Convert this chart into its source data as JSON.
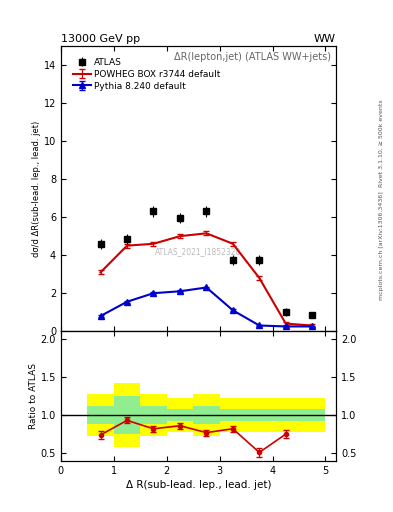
{
  "title_left": "13000 GeV pp",
  "title_right": "WW",
  "plot_title": "ΔR(lepton,jet) (ATLAS WW+jets)",
  "xlabel": "Δ R(sub-lead. lep., lead. jet)",
  "ylabel_main": "dσ/d ΔR(sub-lead. lep., lead. jet)",
  "ylabel_ratio": "Ratio to ATLAS",
  "right_label1": "Rivet 3.1.10, ≥ 500k events",
  "right_label2": "mcplots.cern.ch [arXiv:1306.3436]",
  "watermark": "ATLAS_2021_I1852328",
  "atlas_x": [
    0.75,
    1.25,
    1.75,
    2.25,
    2.75,
    3.25,
    3.75,
    4.25,
    4.75
  ],
  "atlas_y": [
    4.6,
    4.85,
    6.3,
    5.95,
    6.3,
    3.75,
    3.75,
    1.0,
    0.85
  ],
  "atlas_yerr": [
    0.25,
    0.25,
    0.3,
    0.25,
    0.3,
    0.25,
    0.25,
    0.2,
    0.15
  ],
  "powheg_x": [
    0.75,
    1.25,
    1.75,
    2.25,
    2.75,
    3.25,
    3.75,
    4.25,
    4.75
  ],
  "powheg_y": [
    3.1,
    4.5,
    4.6,
    5.0,
    5.15,
    4.6,
    2.8,
    0.4,
    0.3
  ],
  "powheg_yerr": [
    0.1,
    0.1,
    0.1,
    0.1,
    0.1,
    0.1,
    0.12,
    0.1,
    0.08
  ],
  "pythia_x": [
    0.75,
    1.25,
    1.75,
    2.25,
    2.75,
    3.25,
    3.75,
    4.25,
    4.75
  ],
  "pythia_y": [
    0.8,
    1.55,
    2.0,
    2.1,
    2.3,
    1.1,
    0.3,
    0.25,
    0.25
  ],
  "pythia_yerr": [
    0.05,
    0.05,
    0.05,
    0.05,
    0.05,
    0.05,
    0.05,
    0.04,
    0.04
  ],
  "ratio_x": [
    0.75,
    1.25,
    1.75,
    2.25,
    2.75,
    3.25,
    3.75,
    4.25
  ],
  "ratio_y": [
    0.74,
    0.93,
    0.82,
    0.86,
    0.77,
    0.82,
    0.51,
    0.75
  ],
  "ratio_yerr": [
    0.05,
    0.04,
    0.04,
    0.04,
    0.04,
    0.04,
    0.06,
    0.05
  ],
  "band_x_edges": [
    0.5,
    1.0,
    1.5,
    2.0,
    2.5,
    3.0,
    3.5,
    4.0,
    4.5,
    5.0
  ],
  "green_band_lo": [
    0.88,
    0.75,
    0.88,
    0.92,
    0.88,
    0.92,
    0.92,
    0.92,
    0.92,
    0.92
  ],
  "green_band_hi": [
    1.12,
    1.25,
    1.12,
    1.08,
    1.12,
    1.08,
    1.08,
    1.08,
    1.08,
    1.08
  ],
  "yellow_band_lo": [
    0.72,
    0.58,
    0.72,
    0.78,
    0.72,
    0.78,
    0.78,
    0.78,
    0.78,
    0.78
  ],
  "yellow_band_hi": [
    1.28,
    1.42,
    1.28,
    1.22,
    1.28,
    1.22,
    1.22,
    1.22,
    1.22,
    1.22
  ],
  "main_ylim": [
    0,
    15
  ],
  "main_yticks": [
    0,
    2,
    4,
    6,
    8,
    10,
    12,
    14
  ],
  "ratio_ylim": [
    0.4,
    2.1
  ],
  "ratio_yticks": [
    0.5,
    1.0,
    1.5,
    2.0
  ],
  "xlim": [
    0,
    5.2
  ],
  "xticks": [
    0,
    1,
    2,
    3,
    4,
    5
  ],
  "atlas_color": "#000000",
  "powheg_color": "#cc0000",
  "pythia_color": "#0000cc",
  "green_color": "#90ee90",
  "yellow_color": "#ffff00",
  "ratio_color": "#cc0000"
}
